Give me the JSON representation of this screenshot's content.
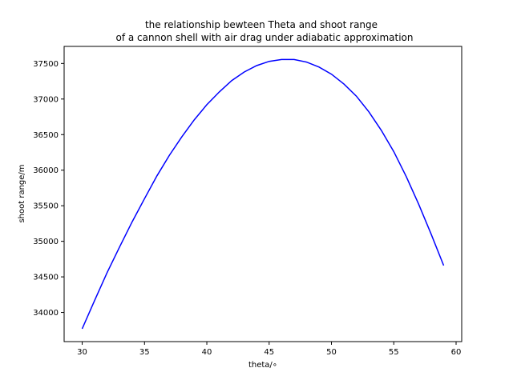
{
  "chart_data": {
    "type": "line",
    "title_line1": "the relationship bewteen Theta and shoot range",
    "title_line2": "of a cannon shell with air drag under adiabatic approximation",
    "xlabel": "theta/∘",
    "ylabel": "shoot range/m",
    "xlim": [
      28.55,
      60.45
    ],
    "ylim": [
      33590,
      37740
    ],
    "xticks": [
      30,
      35,
      40,
      45,
      50,
      55,
      60
    ],
    "yticks": [
      34000,
      34500,
      35000,
      35500,
      36000,
      36500,
      37000,
      37500
    ],
    "grid": false,
    "line_color": "#0000ff",
    "series": [
      {
        "x": [
          30,
          31,
          32,
          33,
          34,
          35,
          36,
          37,
          38,
          39,
          40,
          41,
          42,
          43,
          44,
          45,
          46,
          47,
          48,
          49,
          50,
          51,
          52,
          53,
          54,
          55,
          56,
          57,
          58,
          59
        ],
        "y": [
          33770,
          34170,
          34560,
          34920,
          35270,
          35600,
          35920,
          36210,
          36470,
          36710,
          36920,
          37100,
          37260,
          37380,
          37470,
          37530,
          37555,
          37555,
          37520,
          37450,
          37350,
          37210,
          37040,
          36820,
          36560,
          36260,
          35910,
          35520,
          35100,
          34660
        ]
      }
    ]
  }
}
